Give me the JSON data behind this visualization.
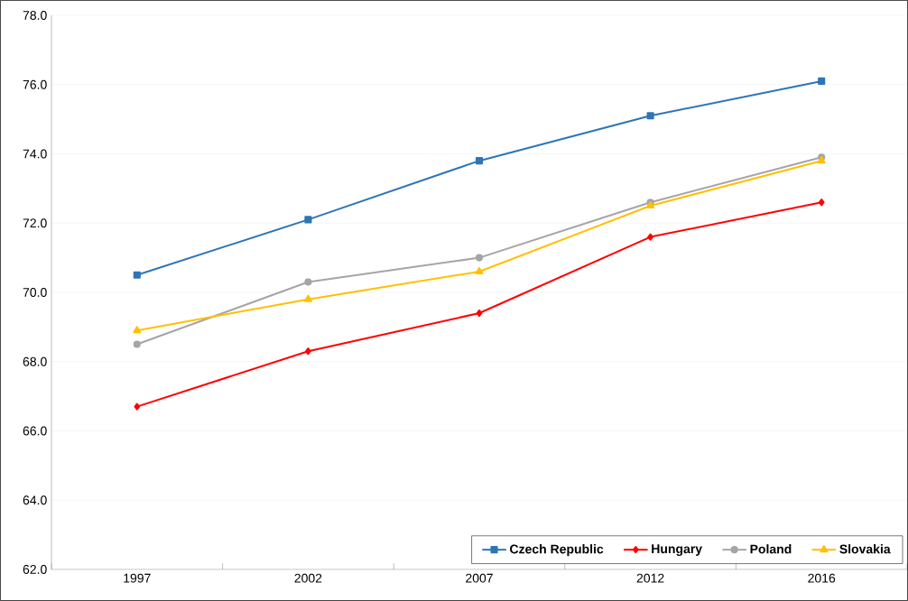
{
  "chart_data": {
    "type": "line",
    "categories": [
      "1997",
      "2002",
      "2007",
      "2012",
      "2016"
    ],
    "series": [
      {
        "name": "Czech Republic",
        "color": "#2e75b6",
        "marker": "square",
        "values": [
          70.5,
          72.1,
          73.8,
          75.1,
          76.1
        ]
      },
      {
        "name": "Hungary",
        "color": "#ff0000",
        "marker": "diamond",
        "values": [
          66.7,
          68.3,
          69.4,
          71.6,
          72.6
        ]
      },
      {
        "name": "Poland",
        "color": "#a5a5a5",
        "marker": "circle",
        "values": [
          68.5,
          70.3,
          71.0,
          72.6,
          73.9
        ]
      },
      {
        "name": "Slovakia",
        "color": "#ffc000",
        "marker": "triangle",
        "values": [
          68.9,
          69.8,
          70.6,
          72.5,
          73.8
        ]
      }
    ],
    "ylim": [
      62,
      78
    ],
    "yticks": [
      {
        "value": 62,
        "label": "62.0"
      },
      {
        "value": 64,
        "label": "64.0"
      },
      {
        "value": 66,
        "label": "66.0"
      },
      {
        "value": 68,
        "label": "68.0"
      },
      {
        "value": 70,
        "label": "70.0"
      },
      {
        "value": 72,
        "label": "72.0"
      },
      {
        "value": 74,
        "label": "74.0"
      },
      {
        "value": 76,
        "label": "76.0"
      },
      {
        "value": 78,
        "label": "78.0"
      }
    ],
    "grid": "y",
    "legend": "bottom right",
    "line_style": "solid"
  }
}
